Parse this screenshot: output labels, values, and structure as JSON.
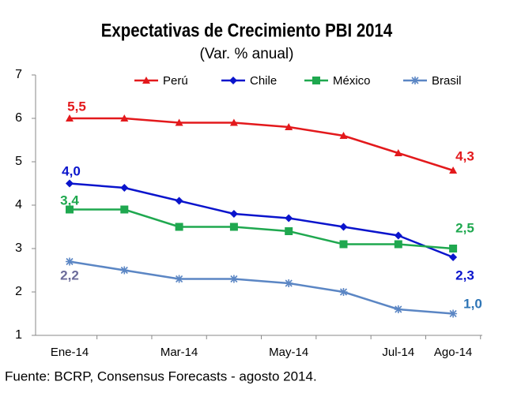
{
  "chart_data": {
    "type": "line",
    "title": "Expectativas de Crecimiento PBI 2014",
    "subtitle": "(Var. % anual)",
    "source": "Fuente: BCRP, Consensus Forecasts - agosto 2014.",
    "categories": [
      "Ene-14",
      null,
      "Mar-14",
      null,
      "May-14",
      null,
      "Jul-14",
      "Ago-14"
    ],
    "series": [
      {
        "name": "Perú",
        "color": "#e3191c",
        "marker": "triangle",
        "values": [
          6.0,
          6.0,
          5.9,
          5.9,
          5.8,
          5.6,
          5.2,
          4.8
        ]
      },
      {
        "name": "Chile",
        "color": "#0a14cc",
        "marker": "diamond",
        "values": [
          4.5,
          4.4,
          4.1,
          3.8,
          3.7,
          3.5,
          3.3,
          2.8
        ]
      },
      {
        "name": "México",
        "color": "#1fa84f",
        "marker": "square",
        "values": [
          3.9,
          3.9,
          3.5,
          3.5,
          3.4,
          3.1,
          3.1,
          3.0
        ]
      },
      {
        "name": "Brasil",
        "color": "#5b86c4",
        "marker": "star",
        "values": [
          2.7,
          2.5,
          2.3,
          2.3,
          2.2,
          2.0,
          1.6,
          1.5
        ]
      }
    ],
    "annotations": [
      {
        "text": "5,5",
        "color": "#e3191c"
      },
      {
        "text": "4,3",
        "color": "#e3191c"
      },
      {
        "text": "4,0",
        "color": "#0a14cc"
      },
      {
        "text": "3,4",
        "color": "#1fa84f"
      },
      {
        "text": "2,2",
        "color": "#6b6b9a"
      },
      {
        "text": "2,5",
        "color": "#1fa84f"
      },
      {
        "text": "2,3",
        "color": "#0a14cc"
      },
      {
        "text": "1,0",
        "color": "#2e75b6"
      }
    ],
    "ylim": [
      1,
      7
    ],
    "yticks": [
      1,
      2,
      3,
      4,
      5,
      6,
      7
    ],
    "legend": "top"
  }
}
